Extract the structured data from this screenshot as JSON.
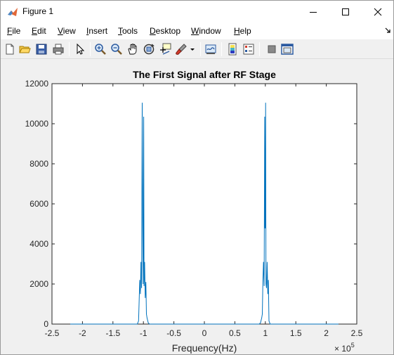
{
  "window": {
    "title": "Figure 1"
  },
  "menu": {
    "items": [
      {
        "label": "File",
        "u": "F",
        "rest": "ile"
      },
      {
        "label": "Edit",
        "u": "E",
        "rest": "dit"
      },
      {
        "label": "View",
        "u": "V",
        "rest": "iew"
      },
      {
        "label": "Insert",
        "u": "I",
        "rest": "nsert"
      },
      {
        "label": "Tools",
        "u": "T",
        "rest": "ools"
      },
      {
        "label": "Desktop",
        "u": "D",
        "rest": "esktop"
      },
      {
        "label": "Window",
        "u": "W",
        "rest": "indow"
      },
      {
        "label": "Help",
        "u": "H",
        "rest": "elp"
      }
    ]
  },
  "toolbar": {
    "icons": [
      "new-figure-icon",
      "open-file-icon",
      "save-icon",
      "print-icon",
      "edit-plot-arrow-icon",
      "zoom-in-icon",
      "zoom-out-icon",
      "pan-hand-icon",
      "rotate-3d-icon",
      "data-cursor-icon",
      "brush-icon",
      "link-plot-icon",
      "insert-colorbar-icon",
      "insert-legend-icon",
      "hide-plot-tools-icon",
      "show-plot-tools-icon"
    ]
  },
  "colors": {
    "line": "#0072bd",
    "axes_bg": "#ffffff",
    "figure_bg": "#f0f0f0"
  },
  "chart_data": {
    "type": "line",
    "title": "The First Signal after RF Stage",
    "xlabel": "Frequency(Hz)",
    "ylabel": "",
    "x_exponent_label": "× 10",
    "x_exponent_power": "5",
    "xlim": [
      -2.5,
      2.5
    ],
    "ylim": [
      0,
      12000
    ],
    "xticks": [
      "-2.5",
      "-2",
      "-1.5",
      "-1",
      "-0.5",
      "0",
      "0.5",
      "1",
      "1.5",
      "2",
      "2.5"
    ],
    "yticks": [
      "0",
      "2000",
      "4000",
      "6000",
      "8000",
      "10000",
      "12000"
    ],
    "grid": false,
    "series": [
      {
        "x": [
          -2.2,
          -1.2,
          -1.1,
          -1.08,
          -1.06,
          -1.05,
          -1.04,
          -1.03,
          -1.02,
          -1.01,
          -1.005,
          -1.0,
          -0.995,
          -0.99,
          -0.98,
          -0.97,
          -0.96,
          -0.95,
          -0.94,
          -0.92,
          -0.9,
          0.0,
          0.9,
          0.92,
          0.94,
          0.95,
          0.96,
          0.97,
          0.98,
          0.99,
          0.995,
          1.0,
          1.005,
          1.01,
          1.02,
          1.03,
          1.04,
          1.05,
          1.06,
          1.08,
          1.1,
          1.2,
          2.2
        ],
        "y": [
          0,
          0,
          0,
          150,
          2200,
          1500,
          3100,
          1800,
          11050,
          4800,
          2000,
          4800,
          10350,
          1900,
          3100,
          1300,
          2100,
          500,
          300,
          60,
          0,
          0,
          0,
          60,
          300,
          500,
          2100,
          3100,
          1900,
          10350,
          4800,
          4800,
          11050,
          2000,
          1800,
          3100,
          1500,
          2200,
          150,
          0,
          0,
          0,
          0
        ]
      }
    ]
  }
}
